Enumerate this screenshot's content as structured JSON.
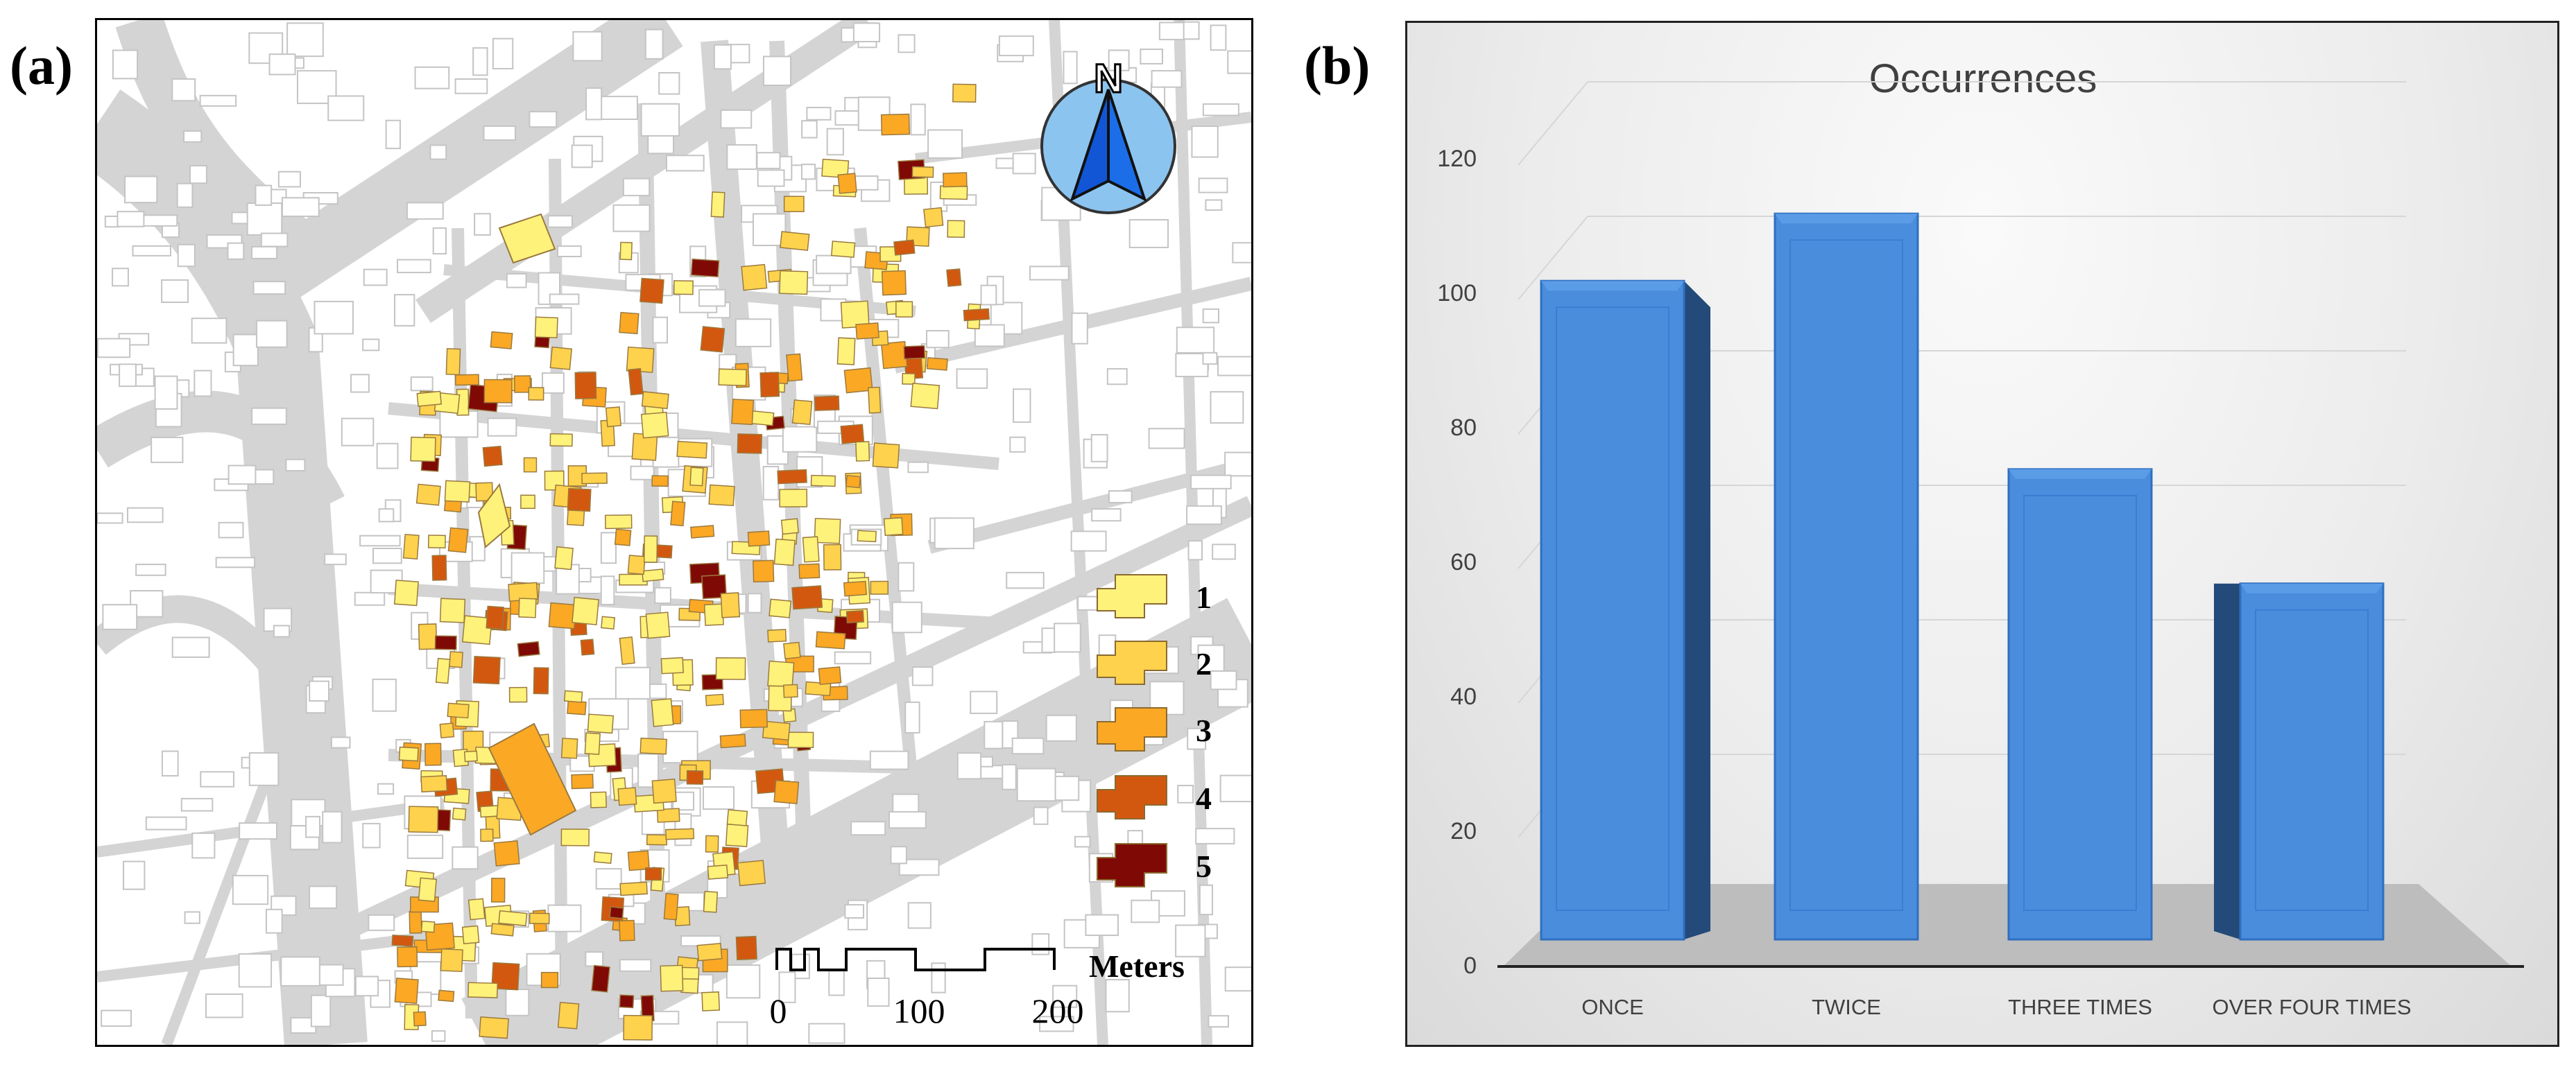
{
  "panels": {
    "a_label": "(a)",
    "b_label": "(b)"
  },
  "map": {
    "north_letter": "N",
    "legend": [
      {
        "label": "1",
        "color": "#fff27a"
      },
      {
        "label": "2",
        "color": "#ffd24d"
      },
      {
        "label": "3",
        "color": "#fba824"
      },
      {
        "label": "4",
        "color": "#d3580f"
      },
      {
        "label": "5",
        "color": "#7f0a05"
      }
    ],
    "scale_bar": {
      "ticks": [
        "0",
        "100",
        "200"
      ],
      "unit": "Meters"
    },
    "colors": {
      "road": "#d4d4d4",
      "block_outline": "#c4c4c4",
      "background": "#ffffff"
    }
  },
  "chart_data": {
    "type": "bar",
    "title": "Occurrences",
    "categories": [
      "ONCE",
      "TWICE",
      "THREE TIMES",
      "OVER FOUR TIMES"
    ],
    "values": [
      104,
      114,
      76,
      59
    ],
    "ylim": [
      0,
      120
    ],
    "yticks": [
      0,
      20,
      40,
      60,
      80,
      100,
      120
    ],
    "ytick_labels": [
      "0",
      "20",
      "40",
      "60",
      "80",
      "100",
      "120"
    ],
    "xlabel": "",
    "ylabel": "",
    "grid": true,
    "bar_color": "#4a8ddc",
    "style": "3d-cylinder-box"
  }
}
